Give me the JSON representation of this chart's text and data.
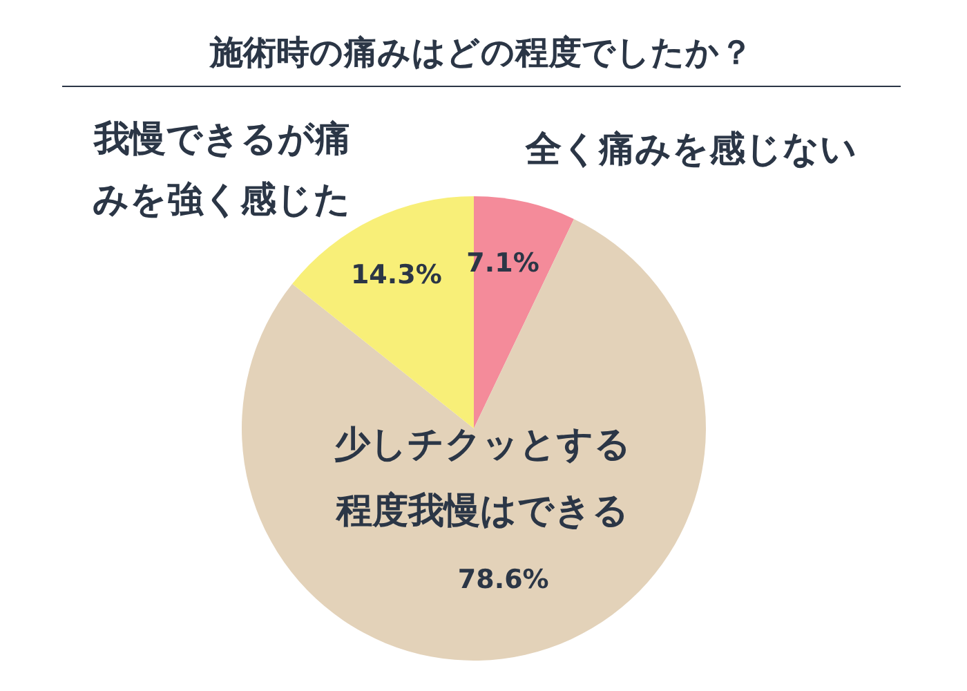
{
  "chart_data": {
    "type": "pie",
    "title": "施術時の痛みはどの程度でしたか？",
    "categories": [
      "全く痛みを感じない",
      "少しチクッとする程度我慢はできる",
      "我慢できるが痛みを強く感じた"
    ],
    "values": [
      7.1,
      78.6,
      14.3
    ],
    "colors": [
      "#f48b9a",
      "#e3d2b9",
      "#f8ef78"
    ],
    "value_labels": [
      "7.1%",
      "78.6%",
      "14.3%"
    ],
    "legend": false
  }
}
